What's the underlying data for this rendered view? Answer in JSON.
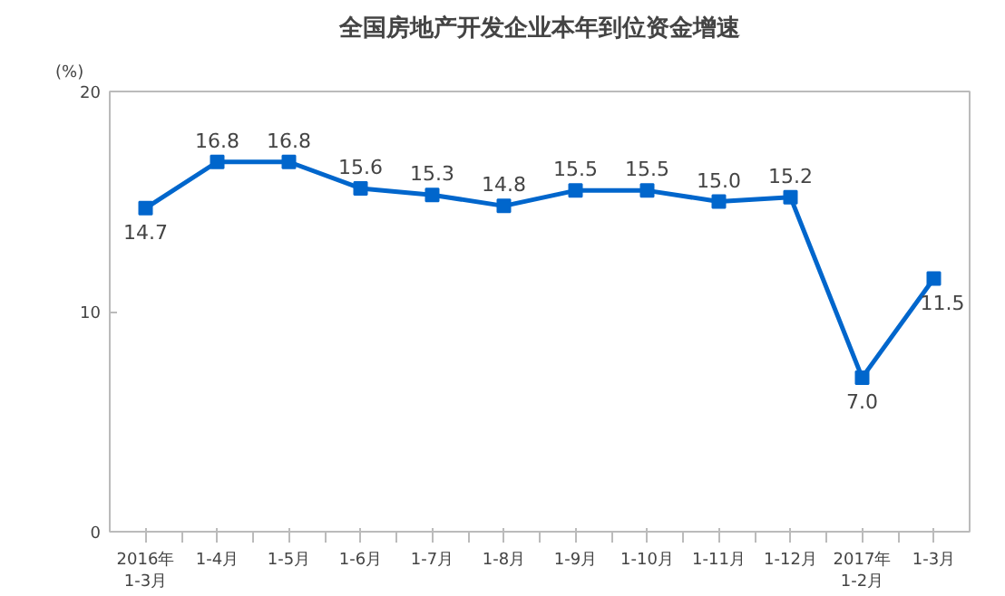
{
  "chart_data": {
    "type": "line",
    "title": "全国房地产开发企业本年到位资金增速",
    "ylabel": "(%)",
    "categories": [
      "2016年\n1-3月",
      "1-4月",
      "1-5月",
      "1-6月",
      "1-7月",
      "1-8月",
      "1-9月",
      "1-10月",
      "1-11月",
      "1-12月",
      "2017年\n1-2月",
      "1-3月"
    ],
    "series": [
      {
        "color": "#0066cc",
        "values": [
          14.7,
          16.8,
          16.8,
          15.6,
          15.3,
          14.8,
          15.5,
          15.5,
          15.0,
          15.2,
          7.0,
          11.5
        ],
        "value_labels": [
          "14.7",
          "16.8",
          "16.8",
          "15.6",
          "15.3",
          "14.8",
          "15.5",
          "15.5",
          "15.0",
          "15.2",
          "7.0",
          "11.5"
        ]
      }
    ],
    "ylim": [
      0,
      20
    ],
    "yticks": [
      0,
      10,
      20
    ],
    "marker": "square",
    "grid": false
  }
}
